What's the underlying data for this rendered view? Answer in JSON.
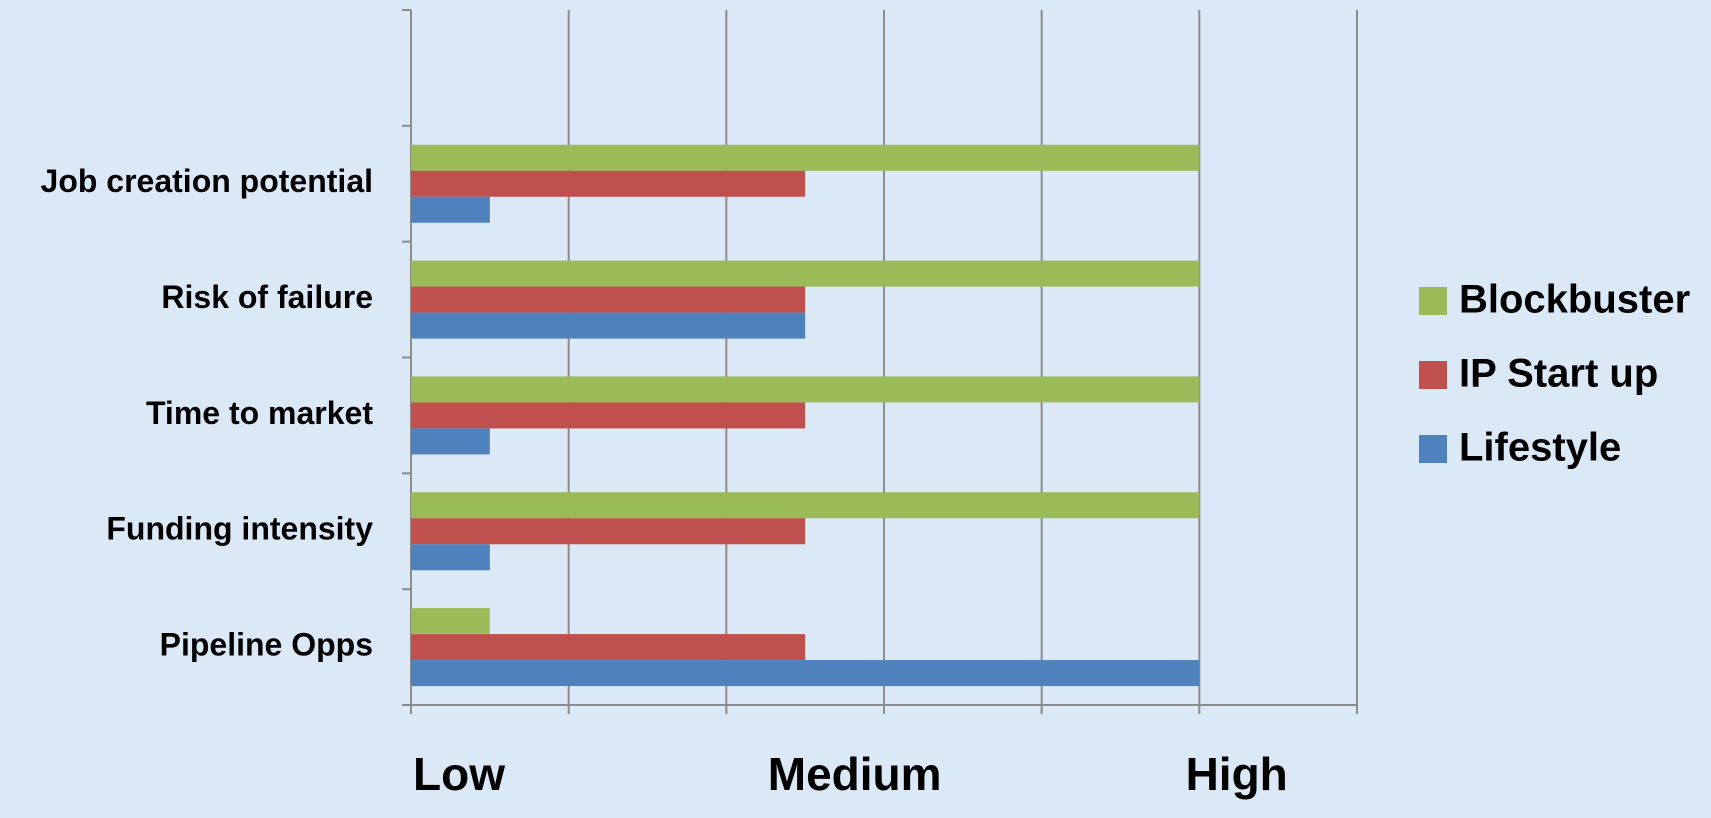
{
  "chart_data": {
    "type": "bar",
    "orientation": "horizontal",
    "categories": [
      "Job creation potential",
      "Risk of failure",
      "Time to market",
      "Funding intensity",
      "Pipeline Opps"
    ],
    "series": [
      {
        "name": "Blockbuster",
        "color": "#9bbb59",
        "values": [
          5,
          5,
          5,
          5,
          0.5
        ]
      },
      {
        "name": "IP Start up",
        "color": "#c0504d",
        "values": [
          2.5,
          2.5,
          2.5,
          2.5,
          2.5
        ]
      },
      {
        "name": "Lifestyle",
        "color": "#4f81bd",
        "values": [
          0.5,
          2.5,
          0.5,
          0.5,
          5
        ]
      }
    ],
    "xlim": [
      0,
      6
    ],
    "x_tick_step": 1,
    "x_level_labels": [
      {
        "label": "Low",
        "value": 0
      },
      {
        "label": "Medium",
        "value": 2.25
      },
      {
        "label": "High",
        "value": 4.9
      }
    ],
    "title": "",
    "xlabel": "",
    "ylabel": "",
    "grid": "vertical",
    "legend": {
      "position": "right",
      "order": [
        "Blockbuster",
        "IP Start up",
        "Lifestyle"
      ]
    }
  }
}
